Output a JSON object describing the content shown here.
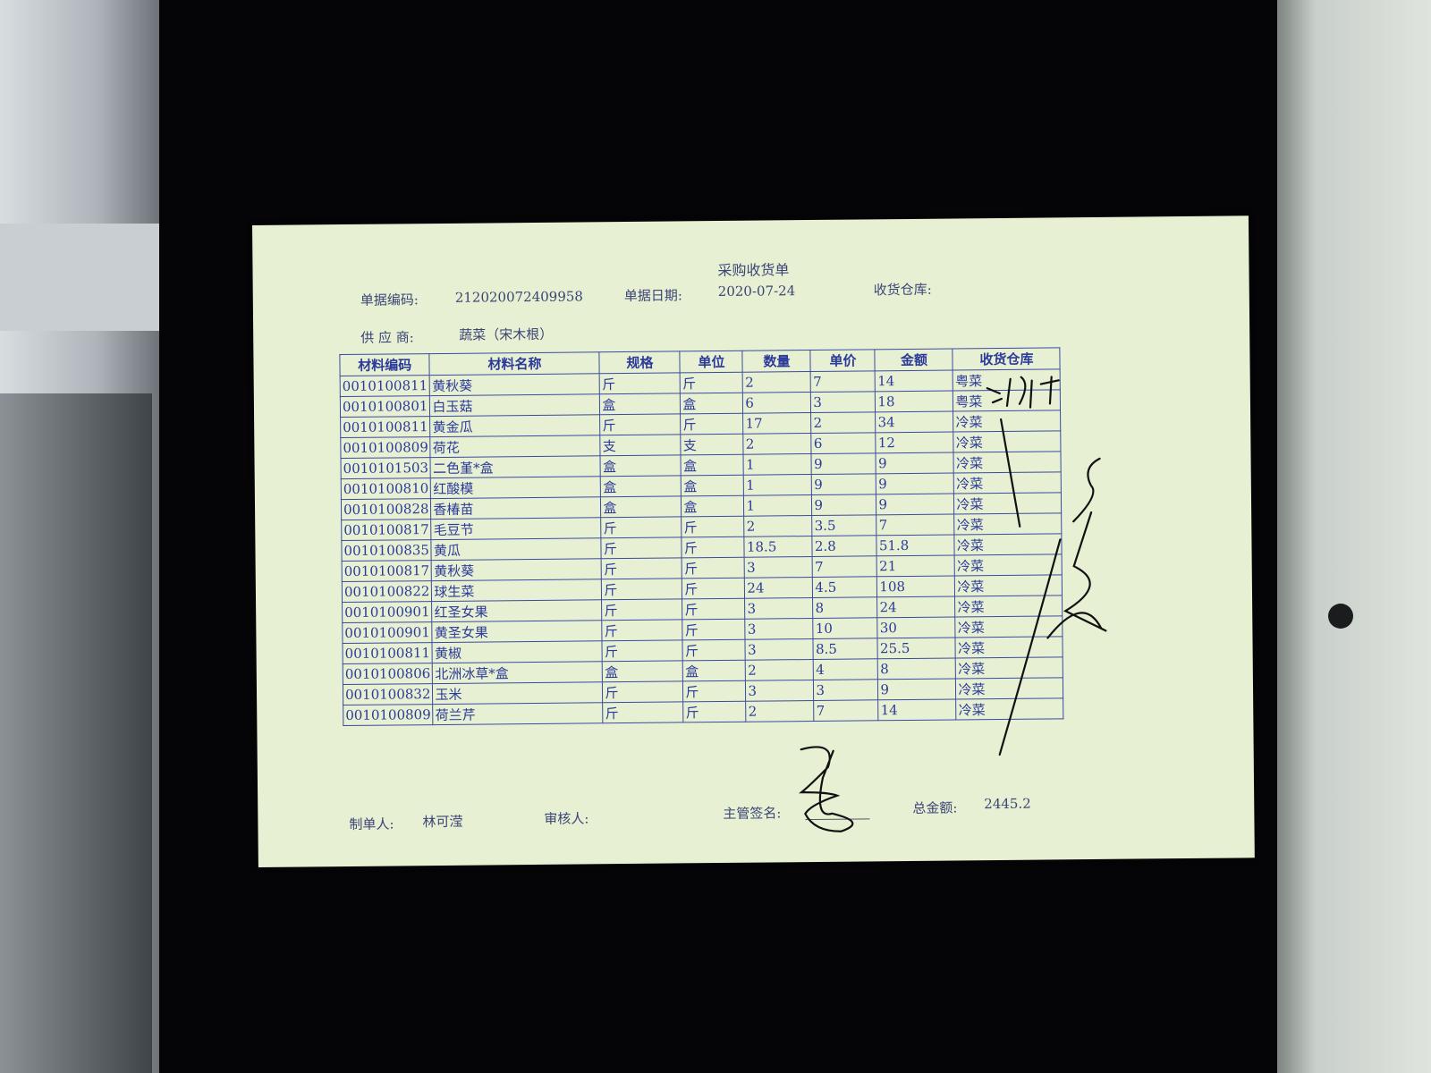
{
  "document": {
    "title": "采购收货单",
    "doc_no_label": "单据编码:",
    "doc_no": "212020072409958",
    "date_label": "单据日期:",
    "date": "2020-07-24",
    "warehouse_label": "收货仓库:",
    "supplier_label": "供 应 商:",
    "supplier": "蔬菜（宋木根）"
  },
  "table": {
    "columns": [
      "材料编码",
      "材料名称",
      "规格",
      "单位",
      "数量",
      "单价",
      "金额",
      "收货仓库"
    ],
    "rows": [
      [
        "0010100811",
        "黄秋葵",
        "斤",
        "斤",
        "2",
        "7",
        "14",
        "粤菜"
      ],
      [
        "0010100801",
        "白玉菇",
        "盒",
        "盒",
        "6",
        "3",
        "18",
        "粤菜"
      ],
      [
        "0010100811",
        "黄金瓜",
        "斤",
        "斤",
        "17",
        "2",
        "34",
        "冷菜"
      ],
      [
        "0010100809",
        "荷花",
        "支",
        "支",
        "2",
        "6",
        "12",
        "冷菜"
      ],
      [
        "0010101503",
        "二色堇*盒",
        "盒",
        "盒",
        "1",
        "9",
        "9",
        "冷菜"
      ],
      [
        "0010100810",
        "红酸模",
        "盒",
        "盒",
        "1",
        "9",
        "9",
        "冷菜"
      ],
      [
        "0010100828",
        "香椿苗",
        "盒",
        "盒",
        "1",
        "9",
        "9",
        "冷菜"
      ],
      [
        "0010100817",
        "毛豆节",
        "斤",
        "斤",
        "2",
        "3.5",
        "7",
        "冷菜"
      ],
      [
        "0010100835",
        "黄瓜",
        "斤",
        "斤",
        "18.5",
        "2.8",
        "51.8",
        "冷菜"
      ],
      [
        "0010100817",
        "黄秋葵",
        "斤",
        "斤",
        "3",
        "7",
        "21",
        "冷菜"
      ],
      [
        "0010100822",
        "球生菜",
        "斤",
        "斤",
        "24",
        "4.5",
        "108",
        "冷菜"
      ],
      [
        "0010100901",
        "红圣女果",
        "斤",
        "斤",
        "3",
        "8",
        "24",
        "冷菜"
      ],
      [
        "0010100901",
        "黄圣女果",
        "斤",
        "斤",
        "3",
        "10",
        "30",
        "冷菜"
      ],
      [
        "0010100811",
        "黄椒",
        "斤",
        "斤",
        "3",
        "8.5",
        "25.5",
        "冷菜"
      ],
      [
        "0010100806",
        "北洲冰草*盒",
        "盒",
        "盒",
        "2",
        "4",
        "8",
        "冷菜"
      ],
      [
        "0010100832",
        "玉米",
        "斤",
        "斤",
        "3",
        "3",
        "9",
        "冷菜"
      ],
      [
        "0010100809",
        "荷兰芹",
        "斤",
        "斤",
        "2",
        "7",
        "14",
        "冷菜"
      ]
    ]
  },
  "footer": {
    "maker_label": "制单人:",
    "maker": "林可滢",
    "reviewer_label": "审核人:",
    "supervisor_label": "主管签名:",
    "total_label": "总金额:",
    "total": "2445.2"
  }
}
